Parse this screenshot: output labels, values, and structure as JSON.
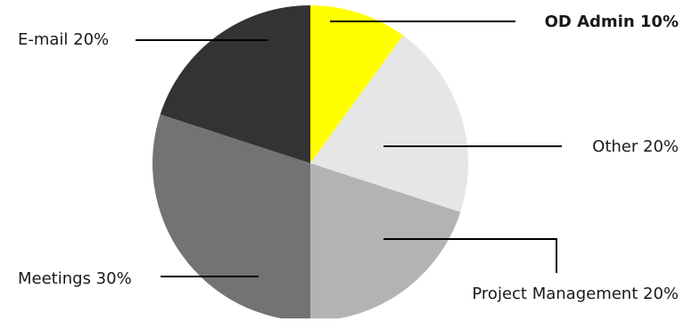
{
  "chart_data": {
    "type": "pie",
    "slices": [
      {
        "label": "OD Admin",
        "value": 10,
        "display": "OD Admin 10%",
        "color": "#ffff00",
        "emphasis": true
      },
      {
        "label": "Other",
        "value": 20,
        "display": "Other 20%",
        "color": "#e6e6e6",
        "emphasis": false
      },
      {
        "label": "Project Management",
        "value": 20,
        "display": "Project Management 20%",
        "color": "#b3b3b3",
        "emphasis": false
      },
      {
        "label": "Meetings",
        "value": 30,
        "display": "Meetings 30%",
        "color": "#737373",
        "emphasis": false
      },
      {
        "label": "E-mail",
        "value": 20,
        "display": "E-mail 20%",
        "color": "#333333",
        "emphasis": false
      }
    ],
    "start_angle": "12 o'clock",
    "direction": "clockwise",
    "unit": "%"
  }
}
